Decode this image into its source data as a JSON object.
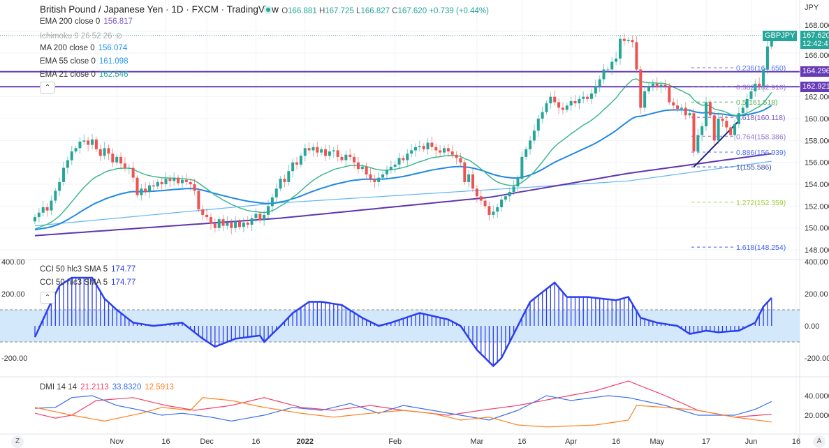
{
  "header": {
    "title": "British Pound / Japanese Yen · 1D · FXCM · TradingView",
    "open_label": "O",
    "open": "166.881",
    "high_label": "H",
    "high": "167.725",
    "low_label": "L",
    "low": "166.827",
    "close_label": "C",
    "close": "167.620",
    "change": "+0.739 (+0.44%)"
  },
  "indicators": [
    {
      "label": "EMA 200 close 0",
      "value": "156.817",
      "color": "#7e57c2"
    },
    {
      "label": "Ichimoku 9 26 52 26",
      "value": "",
      "color": "#aaaaaa",
      "hidden": true
    },
    {
      "label": "MA 200 close 0",
      "value": "156.074",
      "color": "#2196f3"
    },
    {
      "label": "EMA 55 close 0",
      "value": "161.098",
      "color": "#2196f3"
    },
    {
      "label": "EMA 21 close 0",
      "value": "162.546",
      "color": "#26a69a"
    }
  ],
  "cci_legend": [
    {
      "label": "CCI 50 hlc3 SMA 5",
      "value": "174.77"
    },
    {
      "label": "CCI 50 hlc3 SMA 5",
      "value": "174.77"
    }
  ],
  "dmi_legend": {
    "label": "DMI 14 14",
    "values": [
      "21.2113",
      "33.8320",
      "12.5913"
    ],
    "colors": [
      "#f23f6b",
      "#3b6fef",
      "#ff7f1e"
    ]
  },
  "symbol_tag": "GBPJPY",
  "price_tag": {
    "price": "167.620",
    "countdown": "12:42:4"
  },
  "price_axis": {
    "unit": "JPY",
    "ticks": [
      "168.000",
      "166.000",
      "162.000",
      "160.000",
      "158.000",
      "156.000",
      "154.000",
      "152.000",
      "150.000",
      "148.000"
    ]
  },
  "level_tags": [
    {
      "value": "164.296",
      "color": "#673ab7"
    },
    {
      "value": "162.921",
      "color": "#673ab7"
    }
  ],
  "cci_axis": {
    "ticks": [
      "400.00",
      "200.00",
      "0.00",
      "-200.00"
    ]
  },
  "dmi_axis": {
    "ticks": [
      "40.0000",
      "20.0000"
    ]
  },
  "time_axis": {
    "labels": [
      {
        "text": "Nov",
        "bar": 20
      },
      {
        "text": "16",
        "bar": 32
      },
      {
        "text": "Dec",
        "bar": 42
      },
      {
        "text": "16",
        "bar": 54
      },
      {
        "text": "2022",
        "bar": 66,
        "bold": true
      },
      {
        "text": "Feb",
        "bar": 88
      },
      {
        "text": "Mar",
        "bar": 108
      },
      {
        "text": "16",
        "bar": 119
      },
      {
        "text": "Apr",
        "bar": 131
      },
      {
        "text": "16",
        "bar": 142
      },
      {
        "text": "May",
        "bar": 152
      },
      {
        "text": "17",
        "bar": 164
      },
      {
        "text": "Jun",
        "bar": 175
      },
      {
        "text": "16",
        "bar": 186
      }
    ]
  },
  "buttons": {
    "timezone": "Z",
    "auto_scale": "A"
  },
  "chart_data": [
    {
      "type": "candlestick",
      "title": "British Pound / Japanese Yen · 1D · FXCM",
      "ylim": [
        147,
        168.5
      ],
      "first_open": 150.6,
      "closes": [
        151.0,
        151.4,
        151.9,
        151.6,
        152.5,
        153.4,
        154.2,
        155.5,
        156.2,
        157.0,
        157.3,
        157.9,
        158.0,
        157.6,
        158.1,
        157.2,
        156.6,
        157.3,
        156.8,
        156.0,
        156.5,
        155.9,
        155.5,
        155.5,
        154.6,
        153.0,
        153.6,
        153.3,
        153.9,
        153.8,
        154.2,
        154.0,
        154.5,
        154.3,
        154.6,
        154.1,
        154.4,
        154.2,
        154.0,
        153.4,
        151.7,
        151.2,
        151.0,
        150.4,
        150.0,
        150.8,
        150.2,
        150.5,
        150.0,
        150.6,
        150.1,
        150.5,
        150.3,
        150.9,
        151.3,
        150.7,
        151.2,
        152.0,
        152.8,
        153.6,
        154.5,
        154.2,
        155.2,
        156.0,
        155.8,
        156.6,
        157.3,
        157.1,
        157.4,
        156.9,
        157.2,
        156.6,
        157.0,
        157.1,
        156.5,
        156.2,
        156.7,
        156.5,
        156.0,
        155.4,
        155.6,
        154.9,
        154.5,
        154.2,
        154.6,
        154.9,
        155.3,
        155.6,
        155.8,
        156.4,
        156.2,
        156.8,
        157.1,
        157.4,
        157.5,
        157.2,
        157.8,
        157.4,
        157.1,
        156.9,
        157.3,
        157.0,
        156.7,
        156.4,
        156.0,
        154.2,
        154.9,
        153.6,
        152.9,
        152.5,
        152.0,
        151.2,
        151.5,
        151.9,
        152.6,
        152.9,
        153.3,
        153.8,
        154.5,
        156.5,
        157.2,
        158.0,
        158.9,
        160.0,
        160.6,
        161.4,
        162.0,
        161.5,
        161.0,
        160.8,
        161.2,
        161.6,
        161.4,
        161.8,
        162.0,
        161.8,
        162.3,
        163.0,
        163.6,
        164.5,
        164.5,
        165.2,
        165.5,
        167.3,
        167.1,
        167.2,
        167.0,
        164.5,
        161.0,
        162.5,
        163.0,
        163.2,
        162.9,
        163.1,
        163.0,
        161.5,
        161.2,
        160.9,
        161.0,
        160.3,
        160.5,
        157.0,
        158.5,
        159.3,
        161.5,
        160.3,
        158.0,
        160.0,
        159.8,
        159.2,
        158.5,
        159.5,
        160.5,
        161.0,
        161.8,
        162.5,
        163.2,
        163.0,
        164.5,
        166.6,
        167.62
      ],
      "up_color": "#26a69a",
      "down_color": "#ef5350",
      "moving_averages": {
        "ema21_color": "#3cb88f",
        "ema55_color": "#1e88e5",
        "ema200": {
          "color": "#5e35b1",
          "points": [
            [
              0,
              149.3
            ],
            [
              60,
              150.9
            ],
            [
              111,
              152.8
            ],
            [
              145,
              155.0
            ],
            [
              180,
              156.8
            ]
          ]
        },
        "ma200": {
          "color": "#64b5f6",
          "points": [
            [
              0,
              150.2
            ],
            [
              60,
              152.3
            ],
            [
              111,
              153.5
            ],
            [
              145,
              154.3
            ],
            [
              180,
              156.1
            ]
          ]
        }
      },
      "horizontal_levels": [
        164.296,
        162.921
      ],
      "fibonacci": [
        {
          "ratio": "0.236",
          "price": 164.65,
          "label": "0.236(164.650)",
          "color": "#4c6ef5"
        },
        {
          "ratio": "0.382",
          "price": 162.91,
          "label": "0.382(162.910)",
          "color": "#9575cd"
        },
        {
          "ratio": "0.5",
          "price": 161.518,
          "label": "0.5(161.518)",
          "color": "#4caf50"
        },
        {
          "ratio": "0.618",
          "price": 160.118,
          "label": "0.618(160.118)",
          "color": "#7e57c2"
        },
        {
          "ratio": "0.764",
          "price": 158.386,
          "label": "0.764(158.386)",
          "color": "#9575cd"
        },
        {
          "ratio": "0.886",
          "price": 156.939,
          "label": "0.886(156.939)",
          "color": "#4c6ef5"
        },
        {
          "ratio": "1",
          "price": 155.586,
          "label": "1(155.586)",
          "color": "#3949ab"
        },
        {
          "ratio": "1.272",
          "price": 152.359,
          "label": "1.272(152.359)",
          "color": "#9acd32"
        },
        {
          "ratio": "1.618",
          "price": 148.254,
          "label": "1.618(148.254)",
          "color": "#3d5afe"
        }
      ],
      "trendline": {
        "color": "#1a237e",
        "from": [
          161,
          155.586
        ],
        "to": [
          172,
          159.8
        ]
      }
    },
    {
      "type": "bar",
      "title": "CCI 50 hlc3 SMA 5",
      "ylim": [
        -330,
        400
      ],
      "band": [
        -100,
        100
      ],
      "color": "#2b3ef0",
      "points": [
        [
          0,
          -70
        ],
        [
          4,
          150
        ],
        [
          6,
          250
        ],
        [
          9,
          300
        ],
        [
          14,
          300
        ],
        [
          17,
          170
        ],
        [
          20,
          100
        ],
        [
          24,
          20
        ],
        [
          29,
          0
        ],
        [
          36,
          20
        ],
        [
          41,
          -80
        ],
        [
          44,
          -130
        ],
        [
          49,
          -80
        ],
        [
          55,
          -60
        ],
        [
          56,
          -100
        ],
        [
          60,
          0
        ],
        [
          63,
          80
        ],
        [
          67,
          150
        ],
        [
          70,
          150
        ],
        [
          75,
          130
        ],
        [
          80,
          50
        ],
        [
          84,
          0
        ],
        [
          87,
          20
        ],
        [
          94,
          80
        ],
        [
          101,
          40
        ],
        [
          104,
          0
        ],
        [
          108,
          -150
        ],
        [
          112,
          -250
        ],
        [
          114,
          -200
        ],
        [
          118,
          0
        ],
        [
          121,
          150
        ],
        [
          125,
          230
        ],
        [
          127,
          270
        ],
        [
          130,
          180
        ],
        [
          135,
          180
        ],
        [
          142,
          160
        ],
        [
          145,
          180
        ],
        [
          148,
          50
        ],
        [
          152,
          20
        ],
        [
          157,
          0
        ],
        [
          160,
          -50
        ],
        [
          164,
          -30
        ],
        [
          167,
          -40
        ],
        [
          172,
          -30
        ],
        [
          176,
          20
        ],
        [
          178,
          120
        ],
        [
          180,
          175
        ]
      ]
    },
    {
      "type": "line",
      "title": "DMI 14 14",
      "ylim": [
        0,
        60
      ],
      "series": [
        {
          "color": "#f23f6b",
          "points": [
            [
              0,
              22
            ],
            [
              5,
              17
            ],
            [
              9,
              20
            ],
            [
              15,
              35
            ],
            [
              24,
              38
            ],
            [
              32,
              30
            ],
            [
              39,
              25
            ],
            [
              48,
              30
            ],
            [
              56,
              38
            ],
            [
              65,
              28
            ],
            [
              73,
              25
            ],
            [
              82,
              30
            ],
            [
              90,
              25
            ],
            [
              101,
              20
            ],
            [
              109,
              25
            ],
            [
              118,
              30
            ],
            [
              128,
              38
            ],
            [
              137,
              45
            ],
            [
              145,
              55
            ],
            [
              154,
              40
            ],
            [
              162,
              25
            ],
            [
              171,
              18
            ],
            [
              180,
              21
            ]
          ]
        },
        {
          "color": "#3b6fef",
          "points": [
            [
              0,
              27
            ],
            [
              5,
              28
            ],
            [
              9,
              38
            ],
            [
              14,
              40
            ],
            [
              20,
              30
            ],
            [
              26,
              25
            ],
            [
              31,
              20
            ],
            [
              36,
              22
            ],
            [
              43,
              18
            ],
            [
              48,
              14
            ],
            [
              56,
              20
            ],
            [
              63,
              28
            ],
            [
              70,
              25
            ],
            [
              77,
              32
            ],
            [
              84,
              22
            ],
            [
              90,
              30
            ],
            [
              97,
              25
            ],
            [
              104,
              20
            ],
            [
              111,
              15
            ],
            [
              118,
              25
            ],
            [
              125,
              40
            ],
            [
              131,
              35
            ],
            [
              140,
              40
            ],
            [
              145,
              38
            ],
            [
              154,
              30
            ],
            [
              162,
              20
            ],
            [
              171,
              20
            ],
            [
              176,
              26
            ],
            [
              180,
              34
            ]
          ]
        },
        {
          "color": "#ff7f1e",
          "points": [
            [
              0,
              28
            ],
            [
              9,
              20
            ],
            [
              17,
              14
            ],
            [
              26,
              22
            ],
            [
              31,
              28
            ],
            [
              38,
              25
            ],
            [
              41,
              38
            ],
            [
              48,
              35
            ],
            [
              56,
              28
            ],
            [
              65,
              22
            ],
            [
              73,
              18
            ],
            [
              82,
              22
            ],
            [
              90,
              25
            ],
            [
              97,
              22
            ],
            [
              104,
              15
            ],
            [
              111,
              18
            ],
            [
              118,
              10
            ],
            [
              125,
              8
            ],
            [
              137,
              10
            ],
            [
              145,
              15
            ],
            [
              147,
              30
            ],
            [
              154,
              28
            ],
            [
              162,
              25
            ],
            [
              171,
              18
            ],
            [
              180,
              13
            ]
          ]
        }
      ]
    }
  ]
}
